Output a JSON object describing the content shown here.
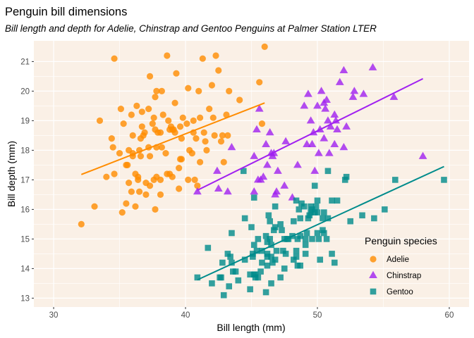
{
  "chart_data": {
    "type": "scatter",
    "title": "Penguin bill dimensions",
    "subtitle": "Bill length and depth for Adelie, Chinstrap and Gentoo Penguins at Palmer Station LTER",
    "xlabel": "Bill length (mm)",
    "ylabel": "Bill depth (mm)",
    "xlim": [
      28.5,
      61.5
    ],
    "ylim": [
      12.7,
      21.7
    ],
    "xticks": [
      30,
      40,
      50,
      60
    ],
    "yticks": [
      13,
      14,
      15,
      16,
      17,
      18,
      19,
      20,
      21
    ],
    "legend": {
      "title": "Penguin species",
      "position": "bottom-right"
    },
    "panel_background": "#FAF0E6",
    "grid": true,
    "series": [
      {
        "name": "Adelie",
        "color": "#FF8C00",
        "shape": "circle",
        "points": [
          [
            32.1,
            15.5
          ],
          [
            33.1,
            16.1
          ],
          [
            33.5,
            19.0
          ],
          [
            34.0,
            17.1
          ],
          [
            34.4,
            18.4
          ],
          [
            34.5,
            18.1
          ],
          [
            34.6,
            21.1
          ],
          [
            34.6,
            17.2
          ],
          [
            35.0,
            17.9
          ],
          [
            35.1,
            19.4
          ],
          [
            35.2,
            15.9
          ],
          [
            35.3,
            18.9
          ],
          [
            35.5,
            16.2
          ],
          [
            35.5,
            17.5
          ],
          [
            35.6,
            17.5
          ],
          [
            35.7,
            16.9
          ],
          [
            35.7,
            18.0
          ],
          [
            35.9,
            19.2
          ],
          [
            35.9,
            16.6
          ],
          [
            36.0,
            18.5
          ],
          [
            36.0,
            17.9
          ],
          [
            36.0,
            17.8
          ],
          [
            36.2,
            16.1
          ],
          [
            36.2,
            17.2
          ],
          [
            36.3,
            19.5
          ],
          [
            36.4,
            17.0
          ],
          [
            36.4,
            17.1
          ],
          [
            36.5,
            18.0
          ],
          [
            36.5,
            16.6
          ],
          [
            36.6,
            17.8
          ],
          [
            36.6,
            18.4
          ],
          [
            36.7,
            19.3
          ],
          [
            36.7,
            18.8
          ],
          [
            36.8,
            18.5
          ],
          [
            36.9,
            18.6
          ],
          [
            37.0,
            16.9
          ],
          [
            37.0,
            16.5
          ],
          [
            37.2,
            18.1
          ],
          [
            37.2,
            19.4
          ],
          [
            37.3,
            17.8
          ],
          [
            37.3,
            20.5
          ],
          [
            37.3,
            16.8
          ],
          [
            37.5,
            18.9
          ],
          [
            37.6,
            19.1
          ],
          [
            37.6,
            17.0
          ],
          [
            37.7,
            18.7
          ],
          [
            37.7,
            19.8
          ],
          [
            37.7,
            16.0
          ],
          [
            37.8,
            18.1
          ],
          [
            37.8,
            17.1
          ],
          [
            37.8,
            20.0
          ],
          [
            37.9,
            18.6
          ],
          [
            38.1,
            18.6
          ],
          [
            38.1,
            17.0
          ],
          [
            38.1,
            16.5
          ],
          [
            38.2,
            18.1
          ],
          [
            38.2,
            20.0
          ],
          [
            38.3,
            19.2
          ],
          [
            38.5,
            17.9
          ],
          [
            38.6,
            21.2
          ],
          [
            38.6,
            17.2
          ],
          [
            38.7,
            19.0
          ],
          [
            38.8,
            17.2
          ],
          [
            38.8,
            18.7
          ],
          [
            38.9,
            18.8
          ],
          [
            39.0,
            17.1
          ],
          [
            39.0,
            18.7
          ],
          [
            39.1,
            18.7
          ],
          [
            39.2,
            19.6
          ],
          [
            39.2,
            18.6
          ],
          [
            39.3,
            20.6
          ],
          [
            39.5,
            17.4
          ],
          [
            39.5,
            16.7
          ],
          [
            39.6,
            18.8
          ],
          [
            39.6,
            17.7
          ],
          [
            39.7,
            18.4
          ],
          [
            39.7,
            17.7
          ],
          [
            39.8,
            19.1
          ],
          [
            40.1,
            18.9
          ],
          [
            40.2,
            17.0
          ],
          [
            40.2,
            20.1
          ],
          [
            40.3,
            18.0
          ],
          [
            40.5,
            17.9
          ],
          [
            40.6,
            18.6
          ],
          [
            40.6,
            19.0
          ],
          [
            40.7,
            17.0
          ],
          [
            40.8,
            18.4
          ],
          [
            40.9,
            16.8
          ],
          [
            41.0,
            20.0
          ],
          [
            41.1,
            17.6
          ],
          [
            41.1,
            19.1
          ],
          [
            41.3,
            21.1
          ],
          [
            41.4,
            18.6
          ],
          [
            41.5,
            18.3
          ],
          [
            41.6,
            18.0
          ],
          [
            41.8,
            19.4
          ],
          [
            42.0,
            20.2
          ],
          [
            42.1,
            19.1
          ],
          [
            42.2,
            18.5
          ],
          [
            42.3,
            21.2
          ],
          [
            42.5,
            20.7
          ],
          [
            42.7,
            18.3
          ],
          [
            42.8,
            18.5
          ],
          [
            42.9,
            17.6
          ],
          [
            43.1,
            19.2
          ],
          [
            43.2,
            18.5
          ],
          [
            43.3,
            20.0
          ],
          [
            44.1,
            19.7
          ],
          [
            45.6,
            20.3
          ],
          [
            45.8,
            18.9
          ],
          [
            46.0,
            21.5
          ]
        ]
      },
      {
        "name": "Chinstrap",
        "color": "#A020F0",
        "shape": "triangle",
        "points": [
          [
            40.9,
            16.6
          ],
          [
            42.4,
            17.3
          ],
          [
            42.5,
            16.7
          ],
          [
            43.2,
            16.6
          ],
          [
            43.5,
            18.1
          ],
          [
            45.2,
            17.8
          ],
          [
            45.2,
            16.6
          ],
          [
            45.4,
            18.7
          ],
          [
            45.5,
            17.0
          ],
          [
            45.6,
            19.4
          ],
          [
            45.7,
            17.0
          ],
          [
            45.9,
            17.1
          ],
          [
            46.1,
            18.2
          ],
          [
            46.2,
            17.5
          ],
          [
            46.4,
            18.6
          ],
          [
            46.5,
            17.9
          ],
          [
            46.6,
            17.8
          ],
          [
            46.7,
            17.9
          ],
          [
            46.8,
            16.5
          ],
          [
            46.9,
            16.6
          ],
          [
            47.0,
            17.3
          ],
          [
            47.5,
            16.8
          ],
          [
            47.6,
            18.3
          ],
          [
            48.1,
            16.4
          ],
          [
            48.5,
            17.5
          ],
          [
            49.0,
            19.5
          ],
          [
            49.2,
            18.2
          ],
          [
            49.3,
            19.9
          ],
          [
            49.5,
            19.0
          ],
          [
            49.6,
            18.2
          ],
          [
            49.7,
            18.6
          ],
          [
            49.8,
            17.3
          ],
          [
            50.0,
            19.5
          ],
          [
            50.1,
            17.9
          ],
          [
            50.2,
            18.7
          ],
          [
            50.3,
            20.0
          ],
          [
            50.5,
            19.6
          ],
          [
            50.5,
            18.4
          ],
          [
            50.6,
            19.4
          ],
          [
            50.7,
            19.7
          ],
          [
            50.8,
            19.0
          ],
          [
            50.9,
            17.9
          ],
          [
            51.0,
            18.8
          ],
          [
            51.3,
            18.2
          ],
          [
            51.3,
            19.2
          ],
          [
            51.4,
            19.0
          ],
          [
            51.5,
            18.7
          ],
          [
            51.7,
            20.3
          ],
          [
            52.0,
            18.1
          ],
          [
            52.0,
            20.7
          ],
          [
            52.2,
            18.8
          ],
          [
            52.7,
            19.8
          ],
          [
            52.8,
            20.0
          ],
          [
            53.5,
            19.9
          ],
          [
            54.2,
            20.8
          ],
          [
            55.8,
            19.8
          ],
          [
            58.0,
            17.8
          ]
        ]
      },
      {
        "name": "Gentoo",
        "color": "#008B8B",
        "shape": "square",
        "points": [
          [
            40.9,
            13.7
          ],
          [
            41.7,
            14.7
          ],
          [
            42.0,
            13.5
          ],
          [
            42.6,
            13.7
          ],
          [
            42.7,
            13.7
          ],
          [
            42.8,
            14.2
          ],
          [
            42.9,
            13.1
          ],
          [
            43.2,
            14.5
          ],
          [
            43.3,
            13.4
          ],
          [
            43.4,
            14.4
          ],
          [
            43.5,
            14.2
          ],
          [
            43.5,
            15.2
          ],
          [
            43.6,
            13.9
          ],
          [
            43.8,
            13.9
          ],
          [
            44.0,
            13.6
          ],
          [
            44.4,
            17.3
          ],
          [
            44.5,
            14.3
          ],
          [
            44.5,
            15.7
          ],
          [
            44.9,
            13.3
          ],
          [
            44.9,
            13.8
          ],
          [
            45.0,
            15.4
          ],
          [
            45.1,
            14.4
          ],
          [
            45.1,
            14.5
          ],
          [
            45.2,
            13.8
          ],
          [
            45.2,
            14.8
          ],
          [
            45.2,
            16.4
          ],
          [
            45.3,
            13.7
          ],
          [
            45.3,
            13.8
          ],
          [
            45.4,
            14.6
          ],
          [
            45.5,
            13.7
          ],
          [
            45.5,
            15.0
          ],
          [
            45.7,
            13.9
          ],
          [
            45.8,
            14.2
          ],
          [
            45.8,
            14.6
          ],
          [
            46.1,
            13.2
          ],
          [
            46.1,
            15.1
          ],
          [
            46.2,
            14.1
          ],
          [
            46.2,
            14.4
          ],
          [
            46.2,
            14.5
          ],
          [
            46.2,
            14.9
          ],
          [
            46.3,
            15.8
          ],
          [
            46.4,
            15.0
          ],
          [
            46.4,
            15.6
          ],
          [
            46.5,
            13.5
          ],
          [
            46.5,
            14.4
          ],
          [
            46.5,
            14.8
          ],
          [
            46.6,
            14.2
          ],
          [
            46.7,
            15.3
          ],
          [
            46.8,
            14.3
          ],
          [
            46.8,
            15.4
          ],
          [
            46.8,
            16.1
          ],
          [
            46.9,
            14.6
          ],
          [
            47.2,
            13.7
          ],
          [
            47.2,
            15.5
          ],
          [
            47.3,
            15.3
          ],
          [
            47.4,
            14.6
          ],
          [
            47.5,
            14.0
          ],
          [
            47.5,
            15.0
          ],
          [
            47.6,
            14.5
          ],
          [
            47.7,
            15.0
          ],
          [
            47.8,
            15.0
          ],
          [
            48.1,
            15.1
          ],
          [
            48.2,
            14.3
          ],
          [
            48.2,
            15.6
          ],
          [
            48.4,
            14.4
          ],
          [
            48.4,
            14.6
          ],
          [
            48.4,
            16.3
          ],
          [
            48.5,
            14.1
          ],
          [
            48.5,
            15.0
          ],
          [
            48.6,
            16.0
          ],
          [
            48.7,
            14.1
          ],
          [
            48.7,
            15.1
          ],
          [
            48.7,
            15.7
          ],
          [
            48.8,
            16.2
          ],
          [
            49.0,
            16.1
          ],
          [
            49.1,
            14.5
          ],
          [
            49.1,
            14.8
          ],
          [
            49.1,
            15.0
          ],
          [
            49.2,
            15.2
          ],
          [
            49.3,
            15.7
          ],
          [
            49.4,
            15.8
          ],
          [
            49.5,
            15.9
          ],
          [
            49.5,
            16.1
          ],
          [
            49.6,
            15.0
          ],
          [
            49.6,
            16.0
          ],
          [
            49.8,
            15.9
          ],
          [
            49.8,
            16.8
          ],
          [
            49.9,
            16.1
          ],
          [
            50.0,
            15.2
          ],
          [
            50.0,
            15.9
          ],
          [
            50.0,
            16.3
          ],
          [
            50.1,
            15.0
          ],
          [
            50.2,
            14.3
          ],
          [
            50.4,
            15.3
          ],
          [
            50.4,
            15.7
          ],
          [
            50.5,
            15.2
          ],
          [
            50.5,
            15.9
          ],
          [
            50.7,
            15.0
          ],
          [
            50.8,
            15.7
          ],
          [
            50.8,
            17.3
          ],
          [
            51.1,
            14.5
          ],
          [
            51.1,
            16.3
          ],
          [
            51.3,
            14.2
          ],
          [
            51.5,
            16.3
          ],
          [
            52.1,
            17.0
          ],
          [
            52.2,
            17.1
          ],
          [
            52.5,
            15.6
          ],
          [
            53.4,
            15.8
          ],
          [
            54.3,
            15.7
          ],
          [
            55.1,
            16.0
          ],
          [
            55.9,
            17.0
          ],
          [
            59.6,
            17.0
          ]
        ]
      }
    ],
    "fits": [
      {
        "series": "Adelie",
        "x": [
          32.1,
          46.0
        ],
        "y": [
          17.18,
          19.6
        ]
      },
      {
        "series": "Chinstrap",
        "x": [
          40.9,
          58.0
        ],
        "y": [
          16.65,
          20.42
        ]
      },
      {
        "series": "Gentoo",
        "x": [
          40.9,
          59.6
        ],
        "y": [
          13.62,
          17.45
        ]
      }
    ]
  }
}
